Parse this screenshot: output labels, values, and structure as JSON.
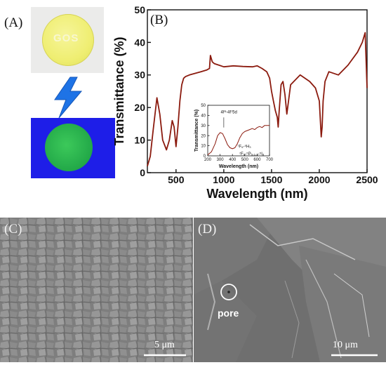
{
  "panels": {
    "a": {
      "label": "(A)",
      "sample_text": "GOS"
    },
    "b": {
      "label": "(B)"
    },
    "c": {
      "label": "(C)",
      "scale_bar": "5 μm"
    },
    "d": {
      "label": "(D)",
      "scale_bar": "10 μm",
      "annotation": "pore"
    }
  },
  "colors": {
    "curve": "#8b1a0e",
    "uv_background": "#1e1ee8",
    "disk_yellow": "#f1f07a",
    "disk_green": "#27b04a",
    "bolt": "#1e73e6"
  },
  "icons": [
    "lightning-bolt-icon"
  ],
  "chart_data": [
    {
      "type": "line",
      "xlabel": "Wavelength (nm)",
      "ylabel": "Transmittance (%)",
      "xlim": [
        200,
        2500
      ],
      "ylim": [
        0,
        50
      ],
      "xticks": [
        500,
        1000,
        1500,
        2000,
        2500
      ],
      "yticks": [
        0,
        10,
        20,
        30,
        40,
        50
      ],
      "x": [
        200,
        230,
        260,
        300,
        330,
        360,
        400,
        430,
        460,
        480,
        500,
        520,
        540,
        560,
        580,
        600,
        640,
        700,
        760,
        820,
        850,
        860,
        880,
        900,
        950,
        1000,
        1100,
        1200,
        1300,
        1350,
        1400,
        1450,
        1480,
        1500,
        1520,
        1540,
        1560,
        1570,
        1580,
        1600,
        1620,
        1640,
        1660,
        1700,
        1800,
        1900,
        1960,
        2000,
        2020,
        2030,
        2040,
        2060,
        2100,
        2200,
        2300,
        2400,
        2450,
        2480,
        2500
      ],
      "values": [
        2,
        5,
        13,
        23,
        18,
        10,
        7,
        10,
        16,
        14,
        8,
        14,
        22,
        27,
        29,
        29.5,
        30,
        30.5,
        31,
        31.5,
        32,
        36,
        34,
        33.5,
        33,
        32.5,
        32.8,
        32.6,
        32.5,
        32.8,
        32,
        31,
        29,
        25,
        22,
        19,
        17,
        14,
        19,
        27,
        28,
        24,
        18,
        27,
        30,
        28,
        26,
        22,
        11,
        14,
        22,
        28,
        31,
        30,
        33,
        37,
        40,
        43,
        26
      ]
    },
    {
      "type": "line",
      "xlabel": "Wavelength (nm)",
      "ylabel": "Transmittance (%)",
      "xlim": [
        200,
        700
      ],
      "ylim": [
        0,
        50
      ],
      "xticks": [
        200,
        300,
        400,
        500,
        600,
        700
      ],
      "yticks": [
        0,
        10,
        20,
        30,
        40,
        50
      ],
      "annotations": [
        "4f⁸-4f⁷5d",
        "⁷F₆-⁵H₃",
        "⁷F₆-⁵P₅,₁,₂-⁵I₈"
      ],
      "x": [
        200,
        230,
        260,
        280,
        300,
        320,
        340,
        360,
        380,
        400,
        420,
        440,
        460,
        480,
        500,
        520,
        540,
        560,
        580,
        600,
        620,
        640,
        660,
        700
      ],
      "values": [
        1,
        4,
        12,
        20,
        23,
        22,
        17,
        11,
        8,
        7,
        8,
        12,
        18,
        22,
        24,
        25,
        26,
        27,
        26,
        28,
        29,
        28,
        30,
        30
      ]
    }
  ]
}
